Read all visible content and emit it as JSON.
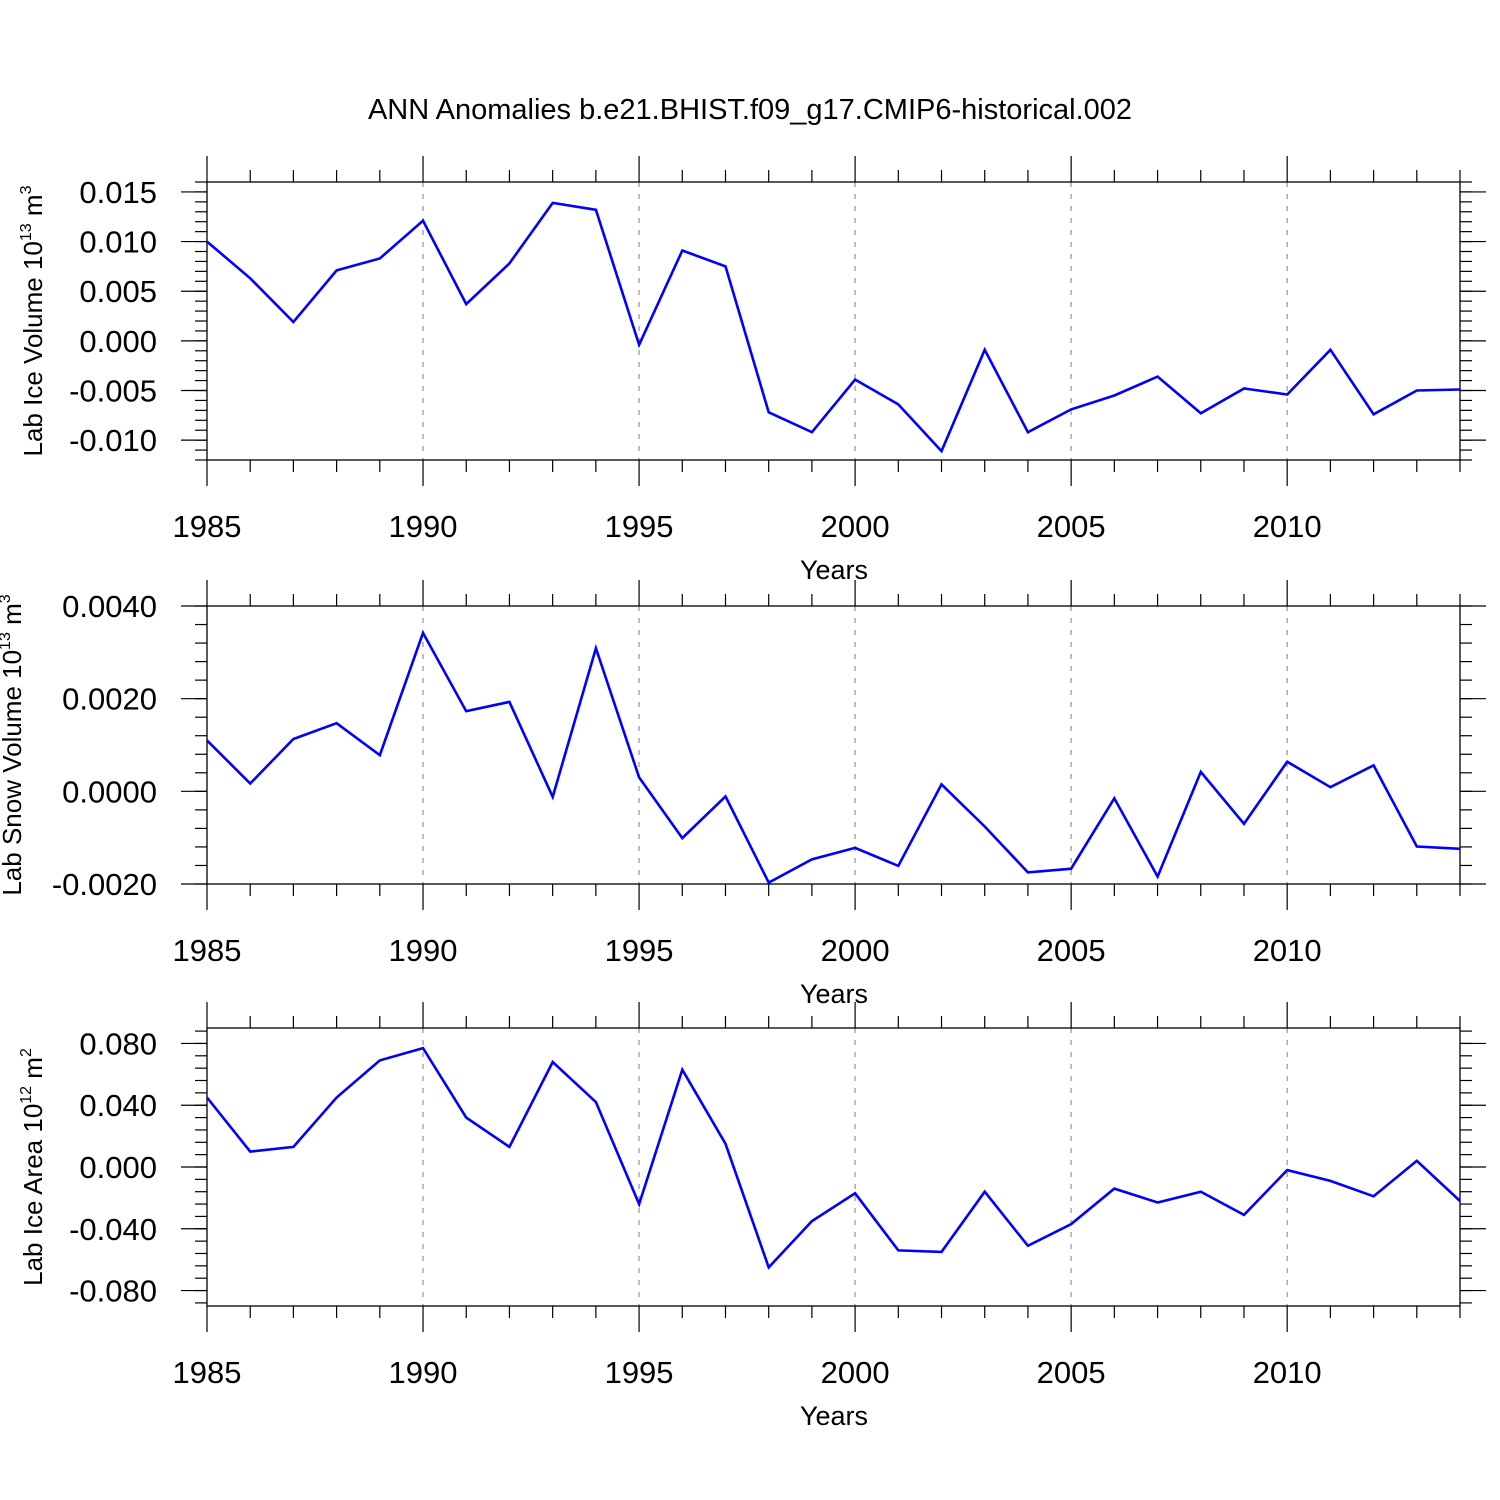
{
  "figure": {
    "title": "ANN Anomalies b.e21.BHIST.f09_g17.CMIP6-historical.002",
    "line_color": "#0000ff",
    "grid_color": "#aaaaaa"
  },
  "chart_data": [
    {
      "type": "line",
      "title": "",
      "xlabel": "Years",
      "ylabel_main": "Lab Ice Volume 10",
      "ylabel_exp": "13",
      "ylabel_unit": " m",
      "ylabel_unit_exp": "3",
      "xlim": [
        1985,
        2014
      ],
      "ylim": [
        -0.012,
        0.016
      ],
      "xticks": [
        1985,
        1990,
        1995,
        2000,
        2005,
        2010
      ],
      "xticklabels": [
        "1985",
        "1990",
        "1995",
        "2000",
        "2005",
        "2010"
      ],
      "yticks": [
        0.015,
        0.01,
        0.005,
        0.0,
        -0.005,
        -0.01
      ],
      "yticklabels": [
        "0.015",
        "0.010",
        "0.005",
        "0.000",
        "-0.005",
        "-0.010"
      ],
      "yminor_step": 0.001,
      "series": [
        {
          "name": "Lab Ice Volume",
          "x": [
            1985,
            1986,
            1987,
            1988,
            1989,
            1990,
            1991,
            1992,
            1993,
            1994,
            1995,
            1996,
            1997,
            1998,
            1999,
            2000,
            2001,
            2002,
            2003,
            2004,
            2005,
            2006,
            2007,
            2008,
            2009,
            2010,
            2011,
            2012,
            2013,
            2014
          ],
          "values": [
            0.01,
            0.0063,
            0.0019,
            0.0071,
            0.0083,
            0.0121,
            0.0037,
            0.0078,
            0.0139,
            0.0132,
            -0.0004,
            0.0091,
            0.0075,
            -0.0072,
            -0.0092,
            -0.0039,
            -0.0064,
            -0.0111,
            -0.0009,
            -0.0092,
            -0.0069,
            -0.0055,
            -0.0036,
            -0.0073,
            -0.0048,
            -0.0054,
            -0.0009,
            -0.0074,
            -0.005,
            -0.0049
          ]
        }
      ]
    },
    {
      "type": "line",
      "title": "",
      "xlabel": "Years",
      "ylabel_main": "Lab Snow Volume 10",
      "ylabel_exp": "13",
      "ylabel_unit": " m",
      "ylabel_unit_exp": "3",
      "xlim": [
        1985,
        2014
      ],
      "ylim": [
        -0.002,
        0.004
      ],
      "xticks": [
        1985,
        1990,
        1995,
        2000,
        2005,
        2010
      ],
      "xticklabels": [
        "1985",
        "1990",
        "1995",
        "2000",
        "2005",
        "2010"
      ],
      "yticks": [
        0.004,
        0.002,
        0.0,
        -0.002
      ],
      "yticklabels": [
        "0.0040",
        "0.0020",
        "0.0000",
        "-0.0020"
      ],
      "yminor_step": 0.0004,
      "series": [
        {
          "name": "Lab Snow Volume",
          "x": [
            1985,
            1986,
            1987,
            1988,
            1989,
            1990,
            1991,
            1992,
            1993,
            1994,
            1995,
            1996,
            1997,
            1998,
            1999,
            2000,
            2001,
            2002,
            2003,
            2004,
            2005,
            2006,
            2007,
            2008,
            2009,
            2010,
            2011,
            2012,
            2013,
            2014
          ],
          "values": [
            0.0011,
            0.00017,
            0.00113,
            0.00147,
            0.00078,
            0.00342,
            0.00173,
            0.00193,
            -0.00012,
            0.00309,
            0.0003,
            -0.00101,
            -0.00011,
            -0.00197,
            -0.00147,
            -0.00122,
            -0.00161,
            0.00015,
            -0.00076,
            -0.00175,
            -0.00167,
            -0.00015,
            -0.00184,
            0.00042,
            -0.0007,
            0.00064,
            9e-05,
            0.00056,
            -0.00119,
            -0.00124
          ]
        }
      ]
    },
    {
      "type": "line",
      "title": "",
      "xlabel": "Years",
      "ylabel_main": "Lab Ice Area 10",
      "ylabel_exp": "12",
      "ylabel_unit": " m",
      "ylabel_unit_exp": "2",
      "xlim": [
        1985,
        2014
      ],
      "ylim": [
        -0.09,
        0.09
      ],
      "xticks": [
        1985,
        1990,
        1995,
        2000,
        2005,
        2010
      ],
      "xticklabels": [
        "1985",
        "1990",
        "1995",
        "2000",
        "2005",
        "2010"
      ],
      "yticks": [
        0.08,
        0.04,
        0.0,
        -0.04,
        -0.08
      ],
      "yticklabels": [
        "0.080",
        "0.040",
        "0.000",
        "-0.040",
        "-0.080"
      ],
      "yminor_step": 0.008,
      "series": [
        {
          "name": "Lab Ice Area",
          "x": [
            1985,
            1986,
            1987,
            1988,
            1989,
            1990,
            1991,
            1992,
            1993,
            1994,
            1995,
            1996,
            1997,
            1998,
            1999,
            2000,
            2001,
            2002,
            2003,
            2004,
            2005,
            2006,
            2007,
            2008,
            2009,
            2010,
            2011,
            2012,
            2013,
            2014
          ],
          "values": [
            0.045,
            0.01,
            0.013,
            0.045,
            0.069,
            0.077,
            0.032,
            0.013,
            0.068,
            0.042,
            -0.024,
            0.063,
            0.015,
            -0.065,
            -0.035,
            -0.017,
            -0.054,
            -0.055,
            -0.016,
            -0.051,
            -0.037,
            -0.014,
            -0.023,
            -0.016,
            -0.031,
            -0.002,
            -0.009,
            -0.019,
            0.004,
            -0.022
          ]
        }
      ]
    }
  ]
}
